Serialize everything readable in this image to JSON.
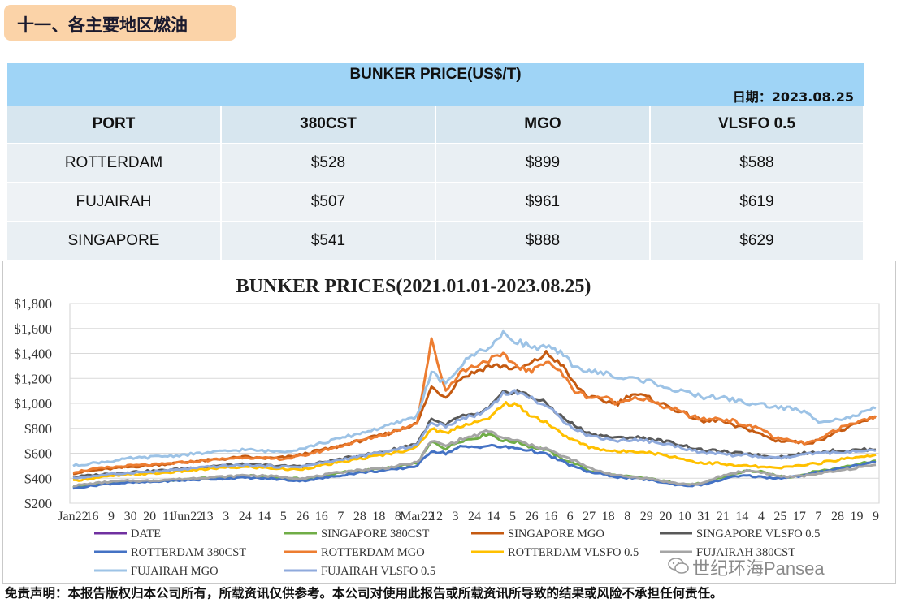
{
  "section": {
    "title": "十一、各主要地区燃油"
  },
  "table": {
    "title": "BUNKER PRICE(US$/T)",
    "date": "日期：2023.08.25",
    "headers": [
      "PORT",
      "380CST",
      "MGO",
      "VLSFO 0.5"
    ],
    "rows": [
      [
        "ROTTERDAM",
        "$528",
        "$899",
        "$588"
      ],
      [
        "FUJAIRAH",
        "$507",
        "$961",
        "$619"
      ],
      [
        "SINGAPORE",
        "$541",
        "$888",
        "$629"
      ]
    ]
  },
  "chart_data": {
    "type": "line",
    "title": "BUNKER PRICES(2021.01.01-2023.08.25)",
    "ylim": [
      200,
      1800
    ],
    "yticks": [
      "$200",
      "$400",
      "$600",
      "$800",
      "$1,000",
      "$1,200",
      "$1,400",
      "$1,600",
      "$1,800"
    ],
    "xticks": [
      "Jan22",
      "16",
      "9",
      "30",
      "20",
      "11",
      "Jun22",
      "13",
      "3",
      "24",
      "14",
      "5",
      "26",
      "16",
      "7",
      "28",
      "18",
      "8",
      "Mar22",
      "12",
      "3",
      "24",
      "14",
      "5",
      "26",
      "16",
      "6",
      "27",
      "18",
      "8",
      "29",
      "20",
      "10",
      "31",
      "21",
      "14",
      "4",
      "25",
      "17",
      "7",
      "28",
      "19",
      "9"
    ],
    "grid": true,
    "legend_position": "bottom",
    "series": [
      {
        "name": "DATE",
        "color": "#7030a0",
        "values": []
      },
      {
        "name": "SINGAPORE 380CST",
        "color": "#70ad47",
        "values": [
          330,
          345,
          360,
          370,
          375,
          372,
          380,
          385,
          390,
          400,
          405,
          410,
          420,
          415,
          410,
          400,
          395,
          410,
          430,
          450,
          460,
          470,
          480,
          500,
          520,
          690,
          640,
          700,
          720,
          760,
          700,
          690,
          650,
          630,
          560,
          520,
          460,
          440,
          420,
          410,
          400,
          380,
          360,
          350,
          360,
          400,
          430,
          460,
          450,
          420,
          410,
          430,
          460,
          470,
          500,
          520,
          541
        ]
      },
      {
        "name": "SINGAPORE MGO",
        "color": "#c55a11",
        "values": [
          440,
          455,
          470,
          480,
          490,
          500,
          510,
          520,
          530,
          540,
          550,
          560,
          570,
          560,
          560,
          570,
          590,
          620,
          640,
          670,
          700,
          730,
          760,
          800,
          840,
          1130,
          1050,
          1200,
          1250,
          1300,
          1300,
          1270,
          1320,
          1400,
          1320,
          1150,
          1050,
          1020,
          1000,
          1080,
          1050,
          1000,
          950,
          900,
          850,
          870,
          820,
          800,
          750,
          700,
          700,
          680,
          700,
          760,
          800,
          850,
          888
        ]
      },
      {
        "name": "SINGAPORE VLSFO 0.5",
        "color": "#595959",
        "values": [
          410,
          420,
          430,
          440,
          450,
          455,
          460,
          470,
          480,
          490,
          500,
          505,
          510,
          505,
          500,
          495,
          500,
          520,
          540,
          560,
          580,
          600,
          620,
          650,
          680,
          870,
          820,
          900,
          900,
          960,
          1080,
          1100,
          1050,
          1000,
          900,
          820,
          760,
          740,
          720,
          730,
          720,
          700,
          680,
          650,
          620,
          620,
          600,
          600,
          580,
          570,
          580,
          600,
          610,
          620,
          620,
          630,
          629
        ]
      },
      {
        "name": "ROTTERDAM 380CST",
        "color": "#4472c4",
        "values": [
          320,
          335,
          350,
          360,
          365,
          368,
          375,
          380,
          385,
          390,
          395,
          400,
          405,
          400,
          395,
          385,
          380,
          395,
          410,
          430,
          445,
          455,
          465,
          480,
          500,
          620,
          600,
          650,
          650,
          660,
          650,
          640,
          620,
          590,
          540,
          490,
          450,
          430,
          410,
          400,
          390,
          370,
          350,
          340,
          350,
          380,
          410,
          420,
          410,
          400,
          410,
          420,
          450,
          470,
          490,
          510,
          528
        ]
      },
      {
        "name": "ROTTERDAM MGO",
        "color": "#ed7d31",
        "values": [
          450,
          465,
          480,
          490,
          500,
          505,
          510,
          520,
          530,
          540,
          550,
          560,
          570,
          560,
          555,
          560,
          580,
          610,
          640,
          670,
          700,
          730,
          760,
          800,
          850,
          1500,
          1100,
          1250,
          1300,
          1350,
          1380,
          1300,
          1250,
          1350,
          1250,
          1100,
          1050,
          1050,
          1000,
          1050,
          1030,
          980,
          950,
          900,
          870,
          880,
          860,
          820,
          800,
          720,
          700,
          680,
          700,
          780,
          820,
          860,
          899
        ]
      },
      {
        "name": "ROTTERDAM VLSFO 0.5",
        "color": "#ffc000",
        "values": [
          380,
          395,
          410,
          420,
          430,
          435,
          440,
          450,
          460,
          470,
          480,
          485,
          490,
          485,
          480,
          470,
          475,
          495,
          515,
          535,
          555,
          575,
          595,
          620,
          650,
          800,
          760,
          820,
          850,
          870,
          1000,
          980,
          900,
          850,
          760,
          700,
          650,
          630,
          610,
          620,
          610,
          590,
          570,
          540,
          520,
          520,
          500,
          500,
          490,
          480,
          490,
          510,
          520,
          540,
          560,
          575,
          588
        ]
      },
      {
        "name": "FUJAIRAH 380CST",
        "color": "#a5a5a5",
        "values": [
          340,
          352,
          365,
          375,
          380,
          378,
          385,
          390,
          395,
          405,
          410,
          415,
          425,
          420,
          415,
          405,
          400,
          415,
          435,
          455,
          465,
          475,
          485,
          505,
          525,
          700,
          660,
          710,
          740,
          780,
          720,
          700,
          660,
          640,
          580,
          540,
          480,
          450,
          420,
          410,
          400,
          380,
          360,
          350,
          360,
          410,
          440,
          460,
          450,
          420,
          410,
          420,
          440,
          450,
          470,
          490,
          507
        ]
      },
      {
        "name": "FUJAIRAH MGO",
        "color": "#9dc3e6",
        "values": [
          500,
          515,
          530,
          540,
          560,
          565,
          575,
          580,
          590,
          600,
          610,
          620,
          630,
          620,
          615,
          620,
          640,
          670,
          700,
          730,
          760,
          790,
          820,
          860,
          900,
          1250,
          1150,
          1300,
          1400,
          1450,
          1550,
          1500,
          1450,
          1450,
          1400,
          1300,
          1250,
          1250,
          1200,
          1200,
          1180,
          1150,
          1100,
          1080,
          1050,
          1050,
          1030,
          1000,
          990,
          970,
          960,
          930,
          860,
          870,
          880,
          920,
          961
        ]
      },
      {
        "name": "FUJAIRAH VLSFO 0.5",
        "color": "#8faadc",
        "values": [
          400,
          412,
          425,
          435,
          445,
          450,
          455,
          465,
          475,
          485,
          495,
          500,
          505,
          500,
          495,
          490,
          495,
          515,
          535,
          555,
          575,
          595,
          615,
          640,
          670,
          850,
          810,
          880,
          900,
          960,
          1080,
          1090,
          1040,
          980,
          880,
          800,
          740,
          720,
          700,
          710,
          700,
          680,
          660,
          630,
          600,
          600,
          585,
          585,
          570,
          560,
          570,
          590,
          600,
          605,
          610,
          615,
          619
        ]
      }
    ]
  },
  "disclaimer": "免责声明：本报告版权归本公司所有，所载资讯仅供参考。本公司对使用此报告或所载资讯所导致的结果或风险不承担任何责任。",
  "watermark": "世纪环海Pansea"
}
